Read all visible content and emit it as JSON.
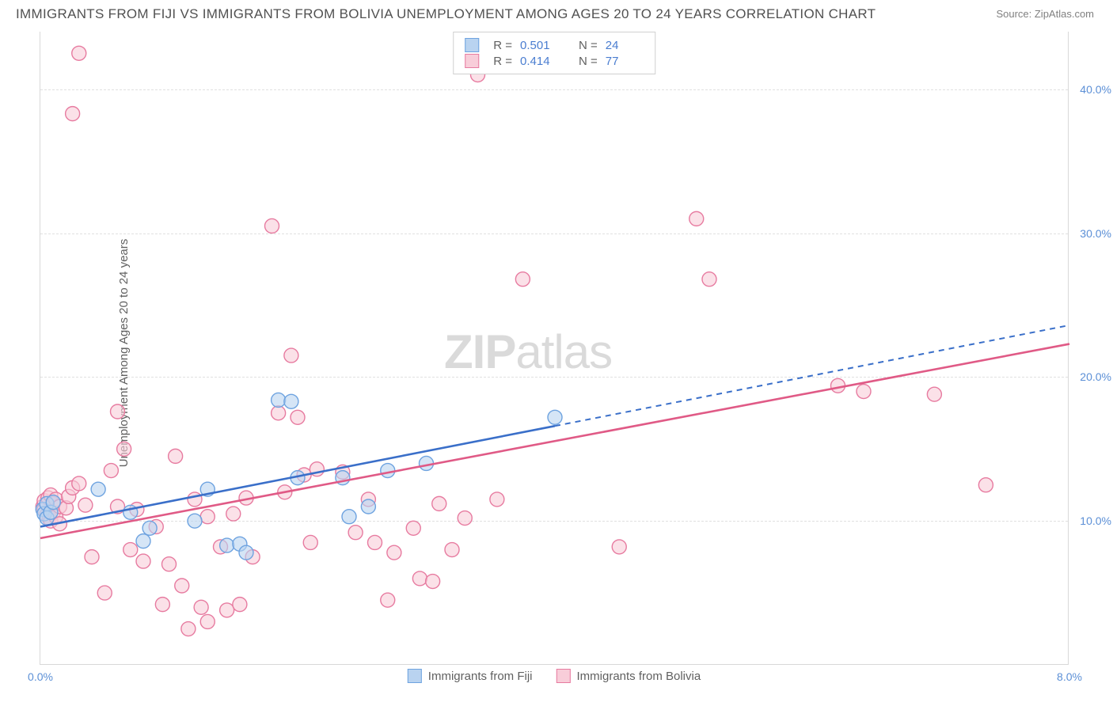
{
  "title": "IMMIGRANTS FROM FIJI VS IMMIGRANTS FROM BOLIVIA UNEMPLOYMENT AMONG AGES 20 TO 24 YEARS CORRELATION CHART",
  "source": "Source: ZipAtlas.com",
  "y_axis_title": "Unemployment Among Ages 20 to 24 years",
  "watermark": {
    "bold": "ZIP",
    "light": "atlas"
  },
  "chart": {
    "type": "scatter-with-regression",
    "xlim": [
      0.0,
      8.0
    ],
    "ylim": [
      0.0,
      44.0
    ],
    "x_ticks": [
      {
        "value": 0.0,
        "label": "0.0%"
      },
      {
        "value": 8.0,
        "label": "8.0%"
      }
    ],
    "y_ticks": [
      {
        "value": 10.0,
        "label": "10.0%"
      },
      {
        "value": 20.0,
        "label": "20.0%"
      },
      {
        "value": 30.0,
        "label": "30.0%"
      },
      {
        "value": 40.0,
        "label": "40.0%"
      }
    ],
    "grid_color": "#e0e0e0",
    "background_color": "#ffffff",
    "marker_radius": 9,
    "marker_stroke_width": 1.4,
    "line_width": 2.6,
    "series": [
      {
        "key": "fiji",
        "label": "Immigrants from Fiji",
        "fill": "#b9d3f0",
        "stroke": "#6ea3e0",
        "line_color": "#3a6fc9",
        "r": "0.501",
        "n": "24",
        "regression": {
          "x1": 0.0,
          "y1": 9.6,
          "x2": 4.0,
          "y2": 16.6,
          "x_extrap": 8.0,
          "y_extrap": 23.6
        },
        "points": [
          [
            0.02,
            10.8
          ],
          [
            0.03,
            10.5
          ],
          [
            0.05,
            11.2
          ],
          [
            0.05,
            10.2
          ],
          [
            0.08,
            10.6
          ],
          [
            0.1,
            11.3
          ],
          [
            0.45,
            12.2
          ],
          [
            0.7,
            10.6
          ],
          [
            0.8,
            8.6
          ],
          [
            0.85,
            9.5
          ],
          [
            1.2,
            10.0
          ],
          [
            1.3,
            12.2
          ],
          [
            1.45,
            8.3
          ],
          [
            1.55,
            8.4
          ],
          [
            1.6,
            7.8
          ],
          [
            1.85,
            18.4
          ],
          [
            1.95,
            18.3
          ],
          [
            2.0,
            13.0
          ],
          [
            2.35,
            13.0
          ],
          [
            2.4,
            10.3
          ],
          [
            2.55,
            11.0
          ],
          [
            2.7,
            13.5
          ],
          [
            3.0,
            14.0
          ],
          [
            4.0,
            17.2
          ]
        ]
      },
      {
        "key": "bolivia",
        "label": "Immigrants from Bolivia",
        "fill": "#f8cdd9",
        "stroke": "#e77ba0",
        "line_color": "#e05a86",
        "r": "0.414",
        "n": "77",
        "regression": {
          "x1": 0.0,
          "y1": 8.8,
          "x2": 8.0,
          "y2": 22.3,
          "x_extrap": 8.0,
          "y_extrap": 22.3
        },
        "points": [
          [
            0.02,
            11.0
          ],
          [
            0.03,
            10.8
          ],
          [
            0.03,
            11.4
          ],
          [
            0.05,
            10.4
          ],
          [
            0.06,
            11.6
          ],
          [
            0.07,
            10.2
          ],
          [
            0.08,
            10.0
          ],
          [
            0.08,
            11.8
          ],
          [
            0.1,
            10.6
          ],
          [
            0.1,
            11.2
          ],
          [
            0.12,
            10.3
          ],
          [
            0.12,
            11.5
          ],
          [
            0.15,
            9.8
          ],
          [
            0.15,
            11.0
          ],
          [
            0.2,
            10.9
          ],
          [
            0.22,
            11.7
          ],
          [
            0.25,
            12.3
          ],
          [
            0.25,
            38.3
          ],
          [
            0.3,
            12.6
          ],
          [
            0.3,
            42.5
          ],
          [
            0.35,
            11.1
          ],
          [
            0.4,
            7.5
          ],
          [
            0.5,
            5.0
          ],
          [
            0.55,
            13.5
          ],
          [
            0.6,
            17.6
          ],
          [
            0.6,
            11.0
          ],
          [
            0.65,
            15.0
          ],
          [
            0.7,
            8.0
          ],
          [
            0.75,
            10.8
          ],
          [
            0.8,
            7.2
          ],
          [
            0.9,
            9.6
          ],
          [
            0.95,
            4.2
          ],
          [
            1.0,
            7.0
          ],
          [
            1.05,
            14.5
          ],
          [
            1.1,
            5.5
          ],
          [
            1.15,
            2.5
          ],
          [
            1.2,
            11.5
          ],
          [
            1.25,
            4.0
          ],
          [
            1.3,
            3.0
          ],
          [
            1.3,
            10.3
          ],
          [
            1.4,
            8.2
          ],
          [
            1.45,
            3.8
          ],
          [
            1.5,
            10.5
          ],
          [
            1.55,
            4.2
          ],
          [
            1.6,
            11.6
          ],
          [
            1.65,
            7.5
          ],
          [
            1.8,
            30.5
          ],
          [
            1.85,
            17.5
          ],
          [
            1.9,
            12.0
          ],
          [
            1.95,
            21.5
          ],
          [
            2.0,
            17.2
          ],
          [
            2.05,
            13.2
          ],
          [
            2.1,
            8.5
          ],
          [
            2.15,
            13.6
          ],
          [
            2.35,
            13.4
          ],
          [
            2.45,
            9.2
          ],
          [
            2.55,
            11.5
          ],
          [
            2.6,
            8.5
          ],
          [
            2.7,
            4.5
          ],
          [
            2.75,
            7.8
          ],
          [
            2.9,
            9.5
          ],
          [
            2.95,
            6.0
          ],
          [
            3.05,
            5.8
          ],
          [
            3.1,
            11.2
          ],
          [
            3.2,
            8.0
          ],
          [
            3.3,
            10.2
          ],
          [
            3.4,
            41.0
          ],
          [
            3.55,
            11.5
          ],
          [
            3.75,
            26.8
          ],
          [
            4.5,
            8.2
          ],
          [
            5.1,
            31.0
          ],
          [
            5.2,
            26.8
          ],
          [
            6.2,
            19.4
          ],
          [
            6.4,
            19.0
          ],
          [
            6.95,
            18.8
          ],
          [
            7.35,
            12.5
          ],
          [
            3.6,
            42.0
          ]
        ]
      }
    ]
  }
}
